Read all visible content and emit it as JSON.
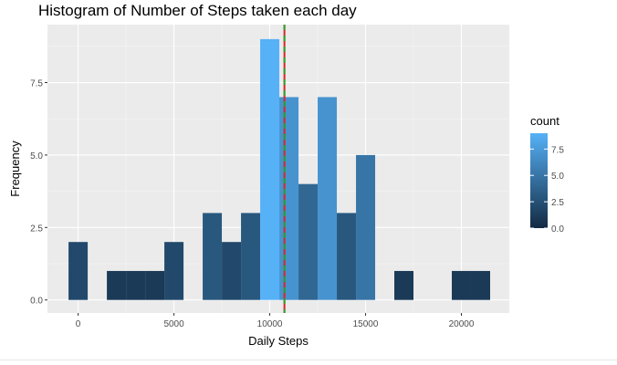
{
  "chart_data": {
    "type": "bar",
    "title": "Histogram of Number of Steps taken each day",
    "xlabel": "Daily Steps",
    "ylabel": "Frequency",
    "xlim": [
      -1600,
      22500
    ],
    "ylim": [
      -0.45,
      9.5
    ],
    "x_ticks": [
      0,
      5000,
      10000,
      15000,
      20000
    ],
    "x_tick_labels": [
      "0",
      "5000",
      "10000",
      "15000",
      "20000"
    ],
    "y_ticks": [
      0,
      2.5,
      5,
      7.5
    ],
    "y_tick_labels": [
      "0.0",
      "2.5",
      "5.0",
      "7.5"
    ],
    "bins": [
      {
        "x_start": -500,
        "x_end": 500,
        "count": 2
      },
      {
        "x_start": 1500,
        "x_end": 2500,
        "count": 1
      },
      {
        "x_start": 2500,
        "x_end": 3500,
        "count": 1
      },
      {
        "x_start": 3500,
        "x_end": 4500,
        "count": 1
      },
      {
        "x_start": 4500,
        "x_end": 5500,
        "count": 2
      },
      {
        "x_start": 6500,
        "x_end": 7500,
        "count": 3
      },
      {
        "x_start": 7500,
        "x_end": 8500,
        "count": 2
      },
      {
        "x_start": 8500,
        "x_end": 9500,
        "count": 3
      },
      {
        "x_start": 9500,
        "x_end": 10500,
        "count": 9
      },
      {
        "x_start": 10500,
        "x_end": 11500,
        "count": 7
      },
      {
        "x_start": 11500,
        "x_end": 12500,
        "count": 4
      },
      {
        "x_start": 12500,
        "x_end": 13500,
        "count": 7
      },
      {
        "x_start": 13500,
        "x_end": 14500,
        "count": 3
      },
      {
        "x_start": 14500,
        "x_end": 15500,
        "count": 5
      },
      {
        "x_start": 16500,
        "x_end": 17500,
        "count": 1
      },
      {
        "x_start": 19500,
        "x_end": 20500,
        "count": 1
      },
      {
        "x_start": 20500,
        "x_end": 21500,
        "count": 1
      }
    ],
    "mean_line": {
      "x": 10766,
      "color": "#d62728"
    },
    "median_line": {
      "x": 10766,
      "color": "#2ca02c"
    },
    "grid": true,
    "legend": {
      "title": "count",
      "placement": "right",
      "ticks": [
        0,
        2.5,
        5,
        7.5
      ],
      "tick_labels": [
        "0.0",
        "2.5",
        "5.0",
        "7.5"
      ],
      "range": [
        0,
        9
      ]
    },
    "colors": {
      "low": "#132B43",
      "high": "#56B1F7",
      "panel": "#ebebeb",
      "grid_major": "#ffffff",
      "grid_minor": "#f5f5f5",
      "text": "#4d4d4d",
      "title": "#000000"
    }
  }
}
